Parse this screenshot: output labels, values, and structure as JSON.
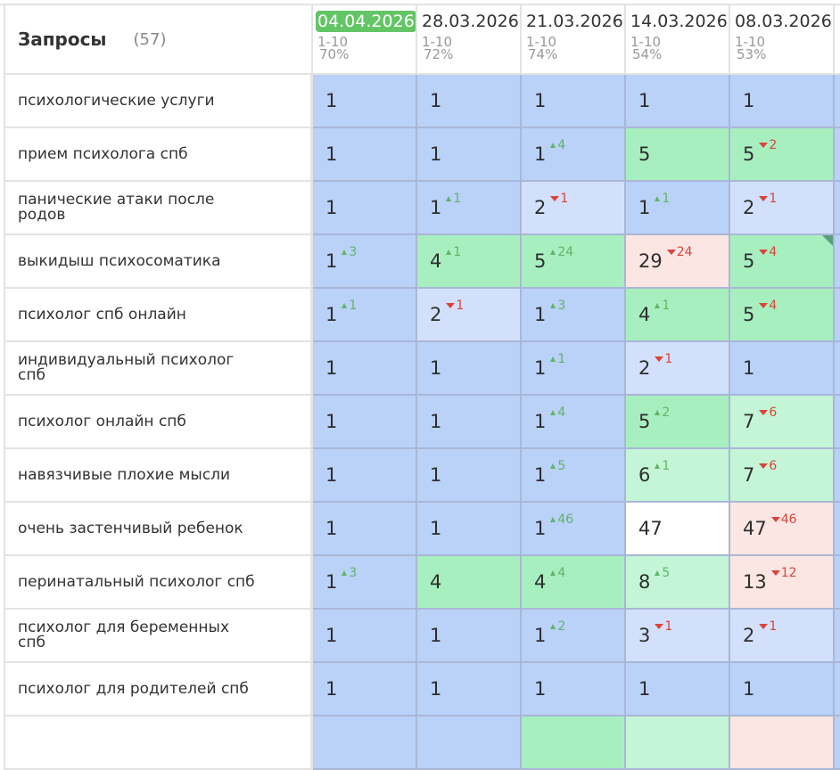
{
  "header": {
    "title": "Запросы",
    "count": "(57)",
    "dates": [
      {
        "label": "04.04.2026",
        "range": "1-10",
        "percent": "70%",
        "current": true
      },
      {
        "label": "28.03.2026",
        "range": "1-10",
        "percent": "72%",
        "current": false
      },
      {
        "label": "21.03.2026",
        "range": "1-10",
        "percent": "74%",
        "current": false
      },
      {
        "label": "14.03.2026",
        "range": "1-10",
        "percent": "54%",
        "current": false
      },
      {
        "label": "08.03.2026",
        "range": "1-10",
        "percent": "53%",
        "current": false
      }
    ]
  },
  "colors": {
    "current_date_badge": "#63c566",
    "top_position": "#bad1f8",
    "top_position_light": "#d3e0fb",
    "top_10": "#a8efc0",
    "top_10_light": "#c3f5d6",
    "dropped": "#fbe6e3",
    "delta_up": "#5fb565",
    "delta_down": "#d9443a"
  },
  "rows": [
    {
      "query": "психологические услуги",
      "cells": [
        {
          "pos": "1",
          "delta": "",
          "dir": "",
          "color": "blue"
        },
        {
          "pos": "1",
          "delta": "",
          "dir": "",
          "color": "blue"
        },
        {
          "pos": "1",
          "delta": "",
          "dir": "",
          "color": "blue"
        },
        {
          "pos": "1",
          "delta": "",
          "dir": "",
          "color": "blue"
        },
        {
          "pos": "1",
          "delta": "",
          "dir": "",
          "color": "blue"
        }
      ]
    },
    {
      "query": "прием психолога спб",
      "cells": [
        {
          "pos": "1",
          "delta": "",
          "dir": "",
          "color": "blue"
        },
        {
          "pos": "1",
          "delta": "",
          "dir": "",
          "color": "blue"
        },
        {
          "pos": "1",
          "delta": "4",
          "dir": "up",
          "color": "blue"
        },
        {
          "pos": "5",
          "delta": "",
          "dir": "",
          "color": "green"
        },
        {
          "pos": "5",
          "delta": "2",
          "dir": "down",
          "color": "green"
        }
      ]
    },
    {
      "query": "панические атаки после родов",
      "cells": [
        {
          "pos": "1",
          "delta": "",
          "dir": "",
          "color": "blue"
        },
        {
          "pos": "1",
          "delta": "1",
          "dir": "up",
          "color": "blue"
        },
        {
          "pos": "2",
          "delta": "1",
          "dir": "down",
          "color": "lblue"
        },
        {
          "pos": "1",
          "delta": "1",
          "dir": "up",
          "color": "blue"
        },
        {
          "pos": "2",
          "delta": "1",
          "dir": "down",
          "color": "lblue"
        }
      ]
    },
    {
      "query": "выкидыш психосоматика",
      "cells": [
        {
          "pos": "1",
          "delta": "3",
          "dir": "up",
          "color": "blue"
        },
        {
          "pos": "4",
          "delta": "1",
          "dir": "up",
          "color": "green"
        },
        {
          "pos": "5",
          "delta": "24",
          "dir": "up",
          "color": "green"
        },
        {
          "pos": "29",
          "delta": "24",
          "dir": "down",
          "color": "pink"
        },
        {
          "pos": "5",
          "delta": "4",
          "dir": "down",
          "color": "green",
          "flag": true
        }
      ]
    },
    {
      "query": "психолог спб онлайн",
      "cells": [
        {
          "pos": "1",
          "delta": "1",
          "dir": "up",
          "color": "blue"
        },
        {
          "pos": "2",
          "delta": "1",
          "dir": "down",
          "color": "lblue"
        },
        {
          "pos": "1",
          "delta": "3",
          "dir": "up",
          "color": "blue"
        },
        {
          "pos": "4",
          "delta": "1",
          "dir": "up",
          "color": "green"
        },
        {
          "pos": "5",
          "delta": "4",
          "dir": "down",
          "color": "green"
        }
      ]
    },
    {
      "query": "индивидуальный психолог спб",
      "cells": [
        {
          "pos": "1",
          "delta": "",
          "dir": "",
          "color": "blue"
        },
        {
          "pos": "1",
          "delta": "",
          "dir": "",
          "color": "blue"
        },
        {
          "pos": "1",
          "delta": "1",
          "dir": "up",
          "color": "blue"
        },
        {
          "pos": "2",
          "delta": "1",
          "dir": "down",
          "color": "lblue"
        },
        {
          "pos": "1",
          "delta": "",
          "dir": "",
          "color": "blue"
        }
      ]
    },
    {
      "query": "психолог онлайн спб",
      "cells": [
        {
          "pos": "1",
          "delta": "",
          "dir": "",
          "color": "blue"
        },
        {
          "pos": "1",
          "delta": "",
          "dir": "",
          "color": "blue"
        },
        {
          "pos": "1",
          "delta": "4",
          "dir": "up",
          "color": "blue"
        },
        {
          "pos": "5",
          "delta": "2",
          "dir": "up",
          "color": "green"
        },
        {
          "pos": "7",
          "delta": "6",
          "dir": "down",
          "color": "lgreen"
        }
      ]
    },
    {
      "query": "навязчивые плохие мысли",
      "cells": [
        {
          "pos": "1",
          "delta": "",
          "dir": "",
          "color": "blue"
        },
        {
          "pos": "1",
          "delta": "",
          "dir": "",
          "color": "blue"
        },
        {
          "pos": "1",
          "delta": "5",
          "dir": "up",
          "color": "blue"
        },
        {
          "pos": "6",
          "delta": "1",
          "dir": "up",
          "color": "lgreen"
        },
        {
          "pos": "7",
          "delta": "6",
          "dir": "down",
          "color": "lgreen"
        }
      ]
    },
    {
      "query": "очень застенчивый ребенок",
      "cells": [
        {
          "pos": "1",
          "delta": "",
          "dir": "",
          "color": "blue"
        },
        {
          "pos": "1",
          "delta": "",
          "dir": "",
          "color": "blue"
        },
        {
          "pos": "1",
          "delta": "46",
          "dir": "up",
          "color": "blue"
        },
        {
          "pos": "47",
          "delta": "",
          "dir": "",
          "color": "white"
        },
        {
          "pos": "47",
          "delta": "46",
          "dir": "down",
          "color": "pink"
        }
      ]
    },
    {
      "query": "перинатальный психолог спб",
      "cells": [
        {
          "pos": "1",
          "delta": "3",
          "dir": "up",
          "color": "blue"
        },
        {
          "pos": "4",
          "delta": "",
          "dir": "",
          "color": "green"
        },
        {
          "pos": "4",
          "delta": "4",
          "dir": "up",
          "color": "green"
        },
        {
          "pos": "8",
          "delta": "5",
          "dir": "up",
          "color": "lgreen"
        },
        {
          "pos": "13",
          "delta": "12",
          "dir": "down",
          "color": "pink"
        }
      ]
    },
    {
      "query": "психолог для беременных спб",
      "cells": [
        {
          "pos": "1",
          "delta": "",
          "dir": "",
          "color": "blue"
        },
        {
          "pos": "1",
          "delta": "",
          "dir": "",
          "color": "blue"
        },
        {
          "pos": "1",
          "delta": "2",
          "dir": "up",
          "color": "blue"
        },
        {
          "pos": "3",
          "delta": "1",
          "dir": "down",
          "color": "lblue"
        },
        {
          "pos": "2",
          "delta": "1",
          "dir": "down",
          "color": "lblue"
        }
      ]
    },
    {
      "query": "психолог для родителей спб",
      "cells": [
        {
          "pos": "1",
          "delta": "",
          "dir": "",
          "color": "blue"
        },
        {
          "pos": "1",
          "delta": "",
          "dir": "",
          "color": "blue"
        },
        {
          "pos": "1",
          "delta": "",
          "dir": "",
          "color": "blue"
        },
        {
          "pos": "1",
          "delta": "",
          "dir": "",
          "color": "blue"
        },
        {
          "pos": "1",
          "delta": "",
          "dir": "",
          "color": "blue"
        }
      ]
    },
    {
      "query": "",
      "cells": [
        {
          "pos": "",
          "delta": "",
          "dir": "",
          "color": "blue"
        },
        {
          "pos": "",
          "delta": "",
          "dir": "",
          "color": "blue"
        },
        {
          "pos": "",
          "delta": "",
          "dir": "",
          "color": "green"
        },
        {
          "pos": "",
          "delta": "",
          "dir": "",
          "color": "lgreen"
        },
        {
          "pos": "",
          "delta": "",
          "dir": "",
          "color": "pink"
        }
      ]
    }
  ]
}
